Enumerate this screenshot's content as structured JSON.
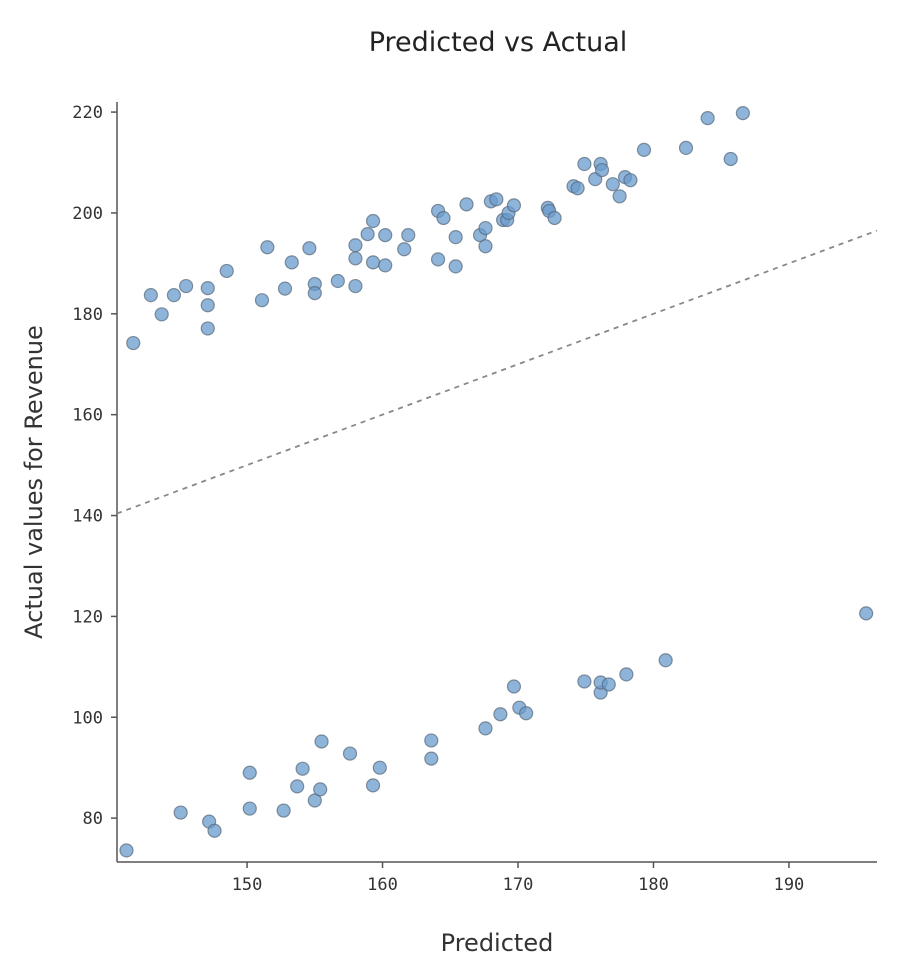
{
  "chart_data": {
    "type": "scatter",
    "title": "Predicted vs Actual",
    "xlabel": "Predicted",
    "ylabel": "Actual values for Revenue",
    "xlim": [
      140.4,
      196.5
    ],
    "ylim": [
      71.3,
      222
    ],
    "xticks": [
      150,
      160,
      170,
      180,
      190
    ],
    "yticks": [
      80,
      100,
      120,
      140,
      160,
      180,
      200,
      220
    ],
    "grid": false,
    "reference_line": {
      "style": "dashed",
      "from": [
        140.4,
        140.4
      ],
      "to": [
        196.5,
        196.5
      ],
      "color": "#888888"
    },
    "marker_color": "#6a9bcc",
    "points": [
      [
        141.6,
        174.2
      ],
      [
        142.9,
        183.7
      ],
      [
        143.7,
        179.9
      ],
      [
        144.6,
        183.7
      ],
      [
        145.5,
        185.5
      ],
      [
        147.1,
        185.1
      ],
      [
        147.1,
        181.7
      ],
      [
        147.1,
        177.1
      ],
      [
        148.5,
        188.5
      ],
      [
        151.1,
        182.7
      ],
      [
        151.5,
        193.2
      ],
      [
        152.8,
        185.0
      ],
      [
        153.3,
        190.2
      ],
      [
        154.6,
        193.0
      ],
      [
        155.0,
        185.9
      ],
      [
        155.0,
        184.1
      ],
      [
        156.7,
        186.5
      ],
      [
        158.0,
        193.6
      ],
      [
        158.0,
        191.0
      ],
      [
        158.0,
        185.5
      ],
      [
        158.9,
        195.8
      ],
      [
        159.3,
        198.4
      ],
      [
        159.3,
        190.2
      ],
      [
        160.2,
        189.6
      ],
      [
        160.2,
        195.6
      ],
      [
        161.6,
        192.8
      ],
      [
        161.9,
        195.6
      ],
      [
        164.1,
        200.4
      ],
      [
        164.1,
        190.8
      ],
      [
        164.5,
        199.0
      ],
      [
        165.4,
        195.2
      ],
      [
        165.4,
        189.4
      ],
      [
        166.2,
        201.7
      ],
      [
        167.2,
        195.6
      ],
      [
        167.6,
        197.0
      ],
      [
        167.6,
        193.4
      ],
      [
        168.0,
        202.3
      ],
      [
        168.4,
        202.7
      ],
      [
        168.9,
        198.6
      ],
      [
        169.2,
        198.6
      ],
      [
        169.3,
        200.0
      ],
      [
        169.7,
        201.5
      ],
      [
        172.2,
        201.0
      ],
      [
        172.3,
        200.4
      ],
      [
        172.7,
        199.0
      ],
      [
        174.1,
        205.3
      ],
      [
        174.4,
        204.9
      ],
      [
        174.9,
        209.7
      ],
      [
        175.7,
        206.7
      ],
      [
        176.1,
        209.7
      ],
      [
        176.2,
        208.5
      ],
      [
        177.0,
        205.7
      ],
      [
        177.5,
        203.3
      ],
      [
        177.9,
        207.1
      ],
      [
        178.3,
        206.5
      ],
      [
        179.3,
        212.5
      ],
      [
        182.4,
        212.9
      ],
      [
        184.0,
        218.8
      ],
      [
        185.7,
        210.7
      ],
      [
        186.6,
        219.8
      ],
      [
        141.1,
        73.6
      ],
      [
        145.1,
        81.1
      ],
      [
        147.2,
        79.3
      ],
      [
        147.6,
        77.5
      ],
      [
        150.2,
        89.0
      ],
      [
        150.2,
        81.9
      ],
      [
        152.7,
        81.5
      ],
      [
        153.7,
        86.3
      ],
      [
        154.1,
        89.8
      ],
      [
        155.0,
        83.5
      ],
      [
        155.4,
        85.7
      ],
      [
        155.5,
        95.2
      ],
      [
        157.6,
        92.8
      ],
      [
        159.3,
        86.5
      ],
      [
        159.8,
        90.0
      ],
      [
        163.6,
        95.4
      ],
      [
        163.6,
        91.8
      ],
      [
        167.6,
        97.8
      ],
      [
        168.7,
        100.6
      ],
      [
        169.7,
        106.1
      ],
      [
        170.1,
        101.9
      ],
      [
        170.6,
        100.8
      ],
      [
        174.9,
        107.1
      ],
      [
        176.1,
        104.9
      ],
      [
        176.1,
        106.9
      ],
      [
        176.7,
        106.5
      ],
      [
        178.0,
        108.5
      ],
      [
        180.9,
        111.3
      ],
      [
        195.7,
        120.6
      ]
    ]
  }
}
